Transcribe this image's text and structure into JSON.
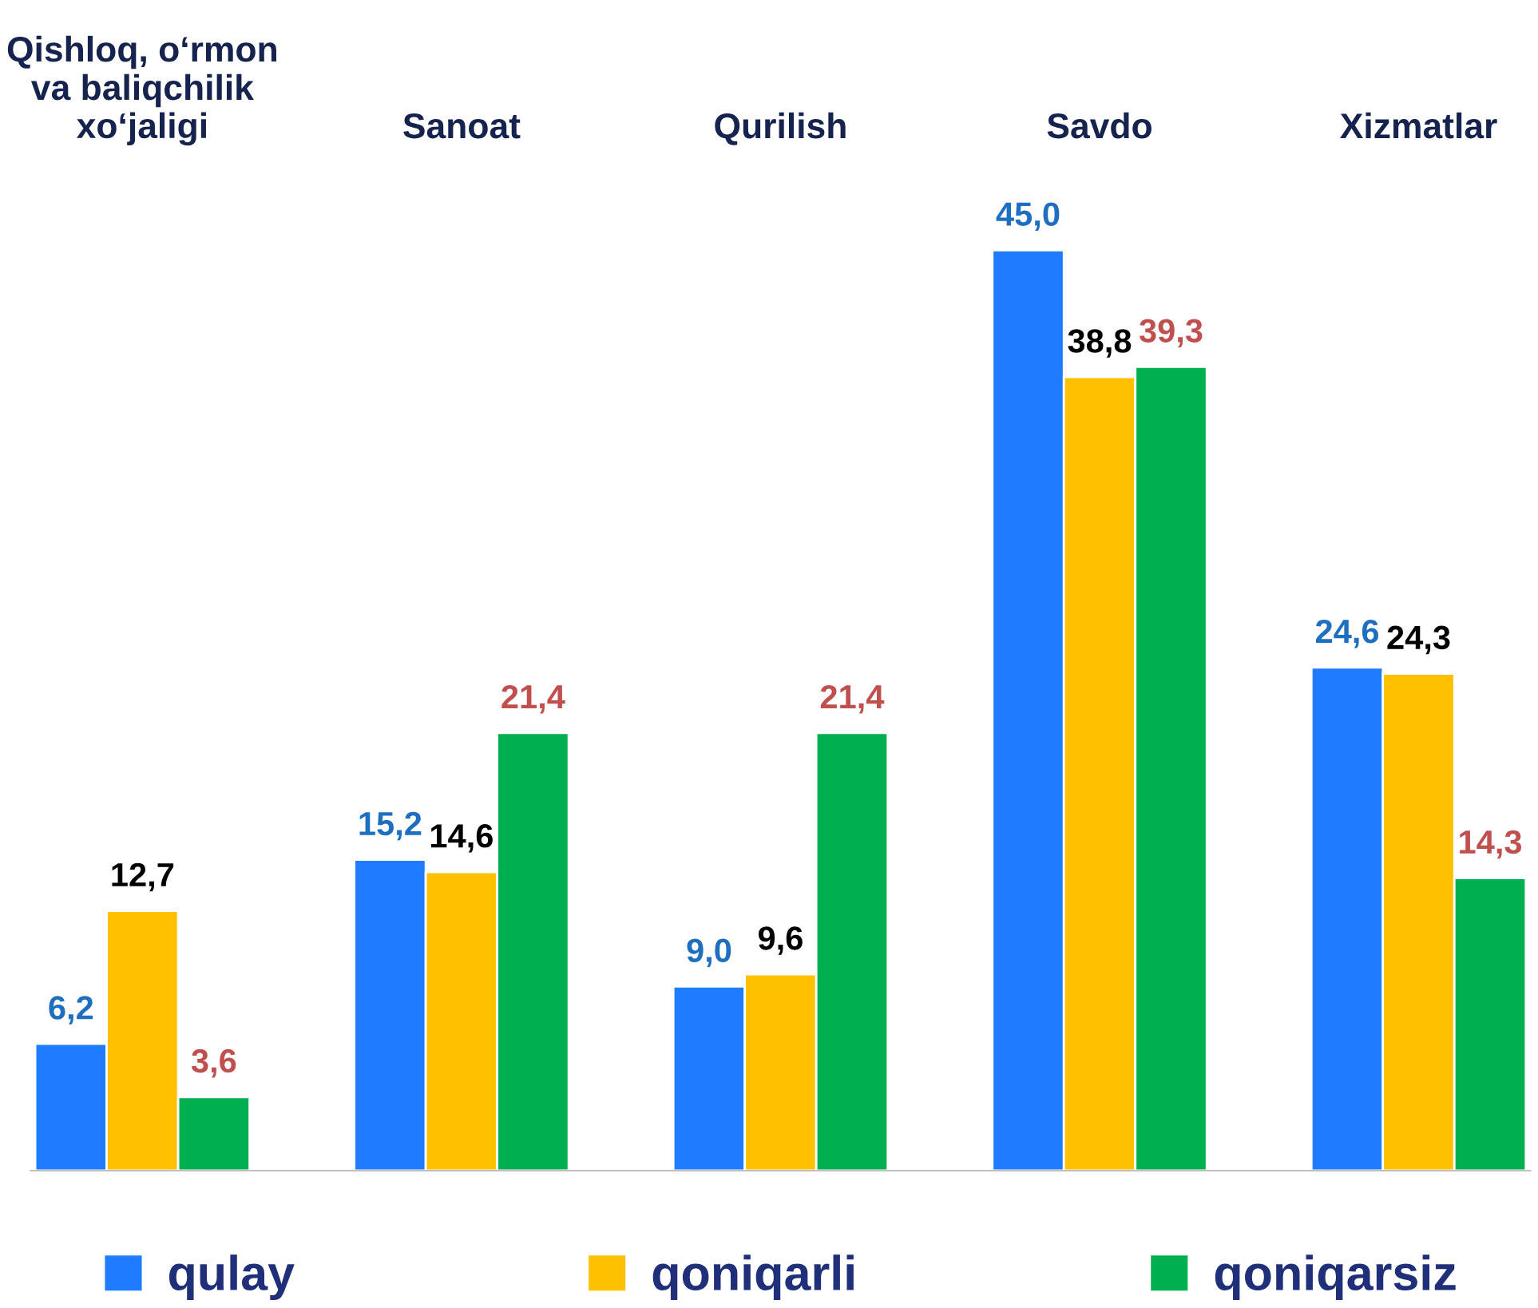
{
  "chart_data": {
    "type": "bar",
    "categories": [
      "Qishloq, o‘rmon\nva baliqchilik\nxo‘jaligi",
      "Sanoat",
      "Qurilish",
      "Savdo",
      "Xizmatlar"
    ],
    "series": [
      {
        "name": "qulay",
        "color": "#1f7bff",
        "values": [
          6.2,
          15.2,
          9.0,
          45.0,
          24.6
        ],
        "value_labels": [
          "6,2",
          "15,2",
          "9,0",
          "45,0",
          "24,6"
        ]
      },
      {
        "name": "qoniqarli",
        "color": "#ffc000",
        "values": [
          12.7,
          14.6,
          9.6,
          38.8,
          24.3
        ],
        "value_labels": [
          "12,7",
          "14,6",
          "9,6",
          "38,8",
          "24,3"
        ]
      },
      {
        "name": "qoniqarsiz",
        "color": "#00b050",
        "values": [
          3.6,
          21.4,
          21.4,
          39.3,
          14.3
        ],
        "value_labels": [
          "3,6",
          "21,4",
          "21,4",
          "39,3",
          "14,3"
        ]
      }
    ],
    "grid": false,
    "legend": "bottom"
  }
}
